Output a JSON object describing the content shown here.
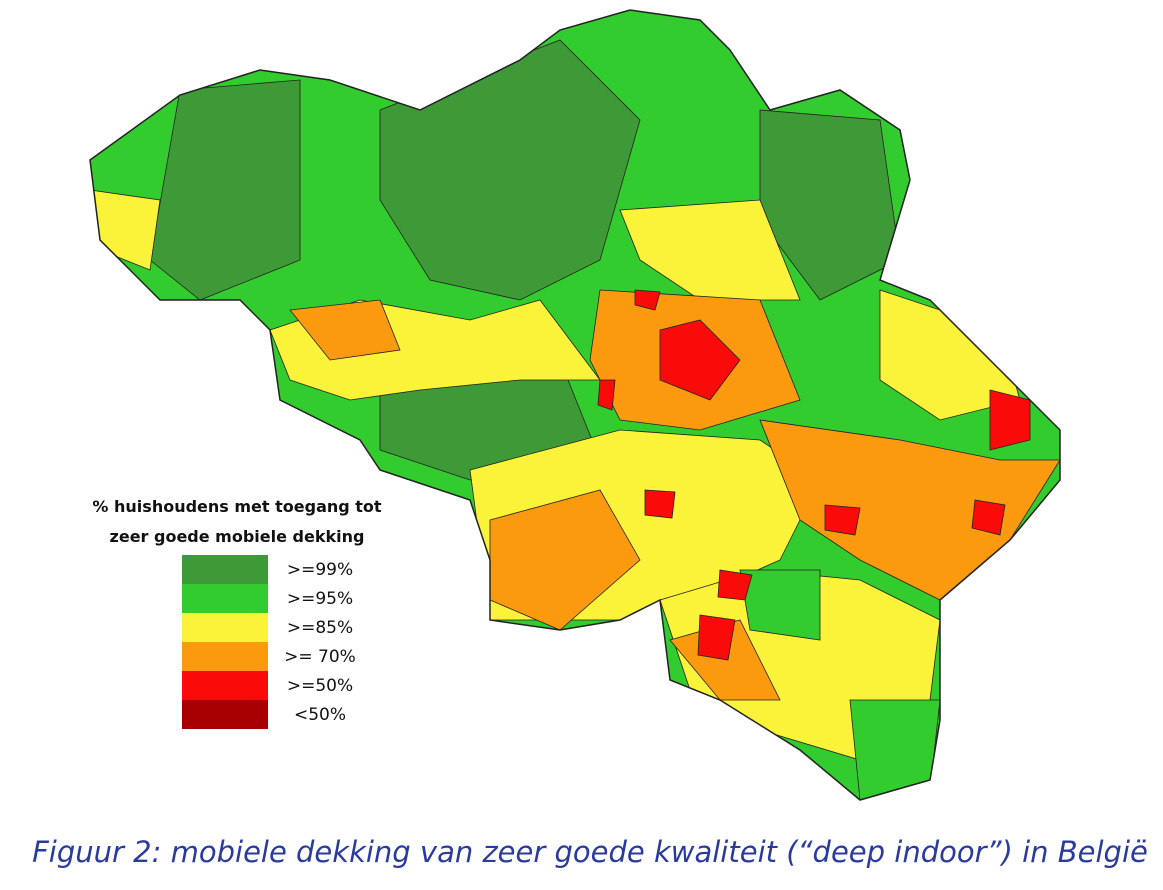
{
  "legend": {
    "title_lines": [
      "% huishoudens met toegang tot",
      "zeer goede mobiele dekking"
    ],
    "items": [
      {
        "label": ">=99%",
        "color": "#3e9a36"
      },
      {
        "label": ">=95%",
        "color": "#33cc2e"
      },
      {
        "label": ">=85%",
        "color": "#fbf23a"
      },
      {
        "label": ">= 70%",
        "color": "#fb9a0e"
      },
      {
        "label": ">=50%",
        "color": "#fb0a0a"
      },
      {
        "label": "<50%",
        "color": "#a80000"
      }
    ]
  },
  "caption": "Figuur 2: mobiele dekking van zeer goede kwaliteit (“deep indoor”) in België"
}
